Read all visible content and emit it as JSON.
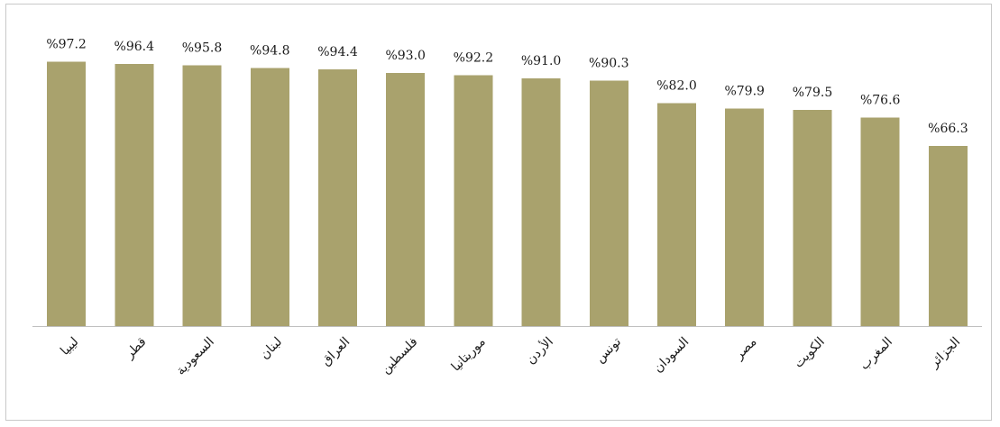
{
  "chart_data": {
    "type": "bar",
    "categories": [
      "ليبيا",
      "قطر",
      "السعودية",
      "لبنان",
      "العراق",
      "فلسطين",
      "موريتانيا",
      "الأردن",
      "تونس",
      "السودان",
      "مصر",
      "الكويت",
      "المغرب",
      "الجزائر"
    ],
    "values": [
      97.2,
      96.4,
      95.8,
      94.8,
      94.4,
      93.0,
      92.2,
      91.0,
      90.3,
      82.0,
      79.9,
      79.5,
      76.6,
      66.3
    ],
    "data_labels": [
      "%97.2",
      "%96.4",
      "%95.8",
      "%94.8",
      "%94.4",
      "%93.0",
      "%92.2",
      "%91.0",
      "%90.3",
      "%82.0",
      "%79.9",
      "%79.5",
      "%76.6",
      "%66.3"
    ],
    "title": "",
    "xlabel": "",
    "ylabel": "",
    "ylim": [
      0,
      100
    ],
    "grid": false,
    "legend": "none",
    "bar_color": "#a9a26d",
    "axis_color": "#bfbfbf",
    "label_rotation_deg": -45
  }
}
